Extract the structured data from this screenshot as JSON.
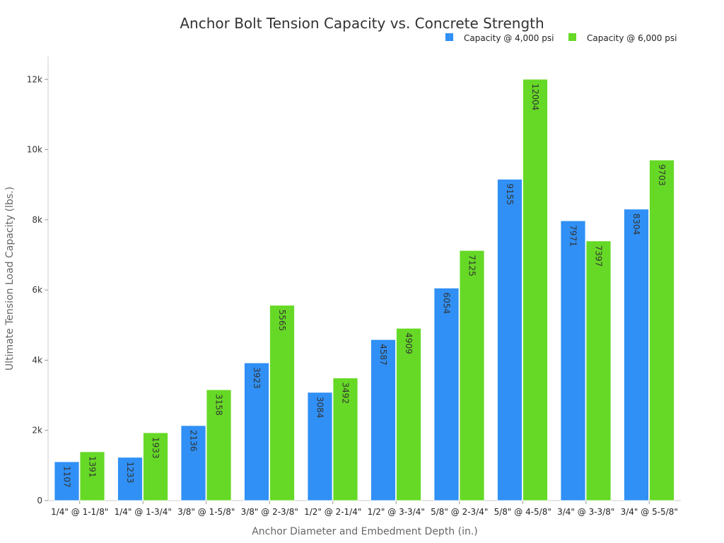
{
  "chart_data": {
    "type": "bar",
    "title": "Anchor Bolt Tension Capacity vs. Concrete Strength",
    "xlabel": "Anchor Diameter and Embedment Depth (in.)",
    "ylabel": "Ultimate Tension Load Capacity (lbs.)",
    "ylim": [
      0,
      12650
    ],
    "yticks": [
      0,
      2000,
      4000,
      6000,
      8000,
      10000,
      12000
    ],
    "ytick_labels": [
      "0",
      "2k",
      "4k",
      "6k",
      "8k",
      "10k",
      "12k"
    ],
    "legend_position": "top-right",
    "grid": false,
    "categories": [
      "1/4\" @ 1-1/8\"",
      "1/4\" @ 1-3/4\"",
      "3/8\" @ 1-5/8\"",
      "3/8\" @ 2-3/8\"",
      "1/2\" @ 2-1/4\"",
      "1/2\" @ 3-3/4\"",
      "5/8\" @ 2-3/4\"",
      "5/8\" @ 4-5/8\"",
      "3/4\" @ 3-3/8\"",
      "3/4\" @ 5-5/8\""
    ],
    "series": [
      {
        "name": "Capacity @ 4,000 psi",
        "color": "#3090f5",
        "values": [
          1107,
          1233,
          2136,
          3923,
          3084,
          4587,
          6054,
          9155,
          7971,
          8304
        ]
      },
      {
        "name": "Capacity @ 6,000 psi",
        "color": "#66d926",
        "values": [
          1391,
          1933,
          3158,
          5565,
          3492,
          4909,
          7125,
          12004,
          7397,
          9703
        ]
      }
    ]
  }
}
